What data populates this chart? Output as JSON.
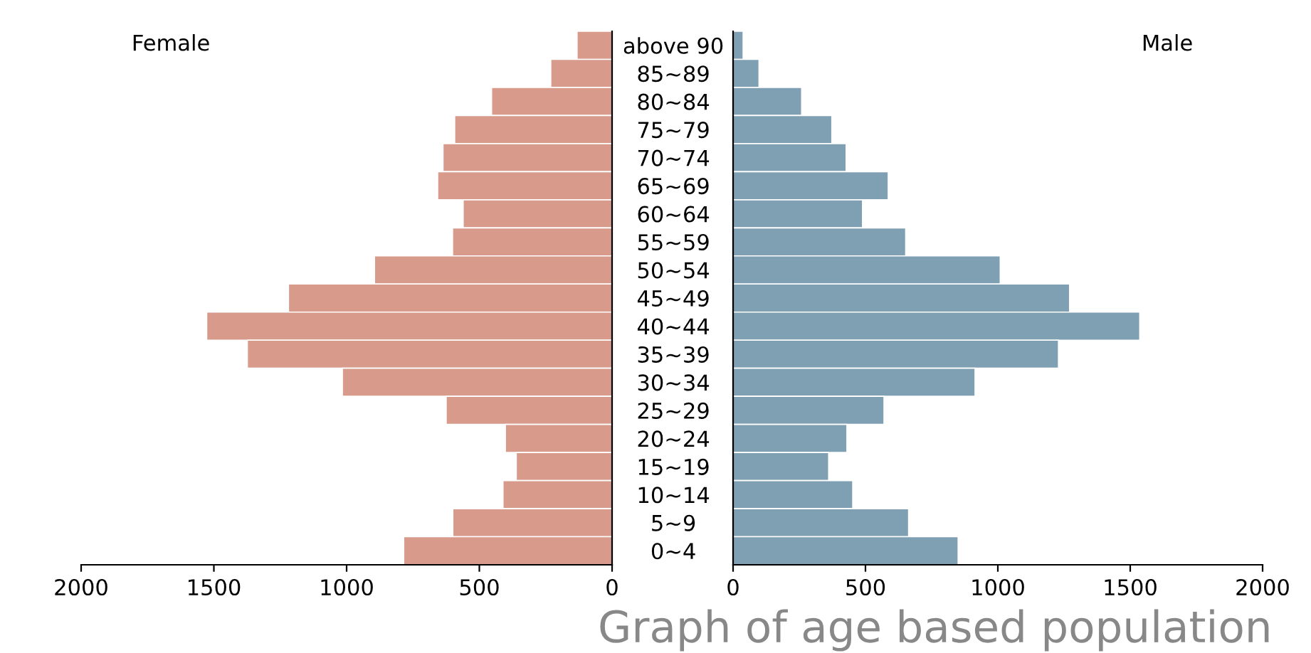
{
  "chart_data": [
    {
      "type": "bar",
      "orientation": "horizontal",
      "title": "Female",
      "categories": [
        "above 90",
        "85~89",
        "80~84",
        "75~79",
        "70~74",
        "65~69",
        "60~64",
        "55~59",
        "50~54",
        "45~49",
        "40~44",
        "35~39",
        "30~34",
        "25~29",
        "20~24",
        "15~19",
        "10~14",
        "5~9",
        "0~4"
      ],
      "values": [
        132,
        231,
        454,
        593,
        637,
        657,
        561,
        601,
        895,
        1219,
        1527,
        1374,
        1016,
        625,
        402,
        361,
        411,
        600,
        785
      ],
      "color": "#d89a8a",
      "xlim": [
        2000,
        0
      ],
      "xticks": [
        2000,
        1500,
        1000,
        500,
        0
      ],
      "grid": false,
      "legend": false
    },
    {
      "type": "bar",
      "orientation": "horizontal",
      "title": "Male",
      "categories": [
        null,
        null,
        null,
        null,
        null,
        null,
        null,
        null,
        null,
        null,
        null,
        null,
        null,
        null,
        null,
        null,
        null,
        null,
        null
      ],
      "values": [
        38,
        98,
        259,
        373,
        427,
        586,
        489,
        652,
        1009,
        1271,
        1536,
        1229,
        914,
        570,
        430,
        361,
        452,
        663,
        850
      ],
      "color": "#7f9fb3",
      "xlim": [
        0,
        2000
      ],
      "xticks": [
        0,
        500,
        1000,
        1500,
        2000
      ],
      "grid": false,
      "legend": false,
      "tick_labels": "x",
      "annotations": [
        "Graph of age based population"
      ]
    }
  ]
}
